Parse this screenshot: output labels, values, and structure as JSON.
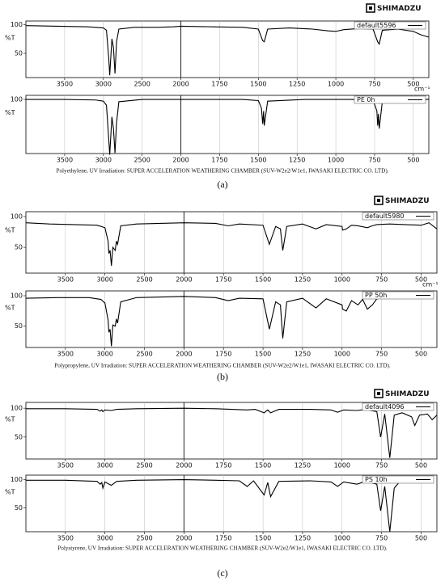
{
  "chart_data": [
    {
      "type": "line",
      "ylabel": "%T",
      "xlabel": "cm⁻¹",
      "xlim": [
        4000,
        400
      ],
      "xbreak": 2000,
      "xbreak_scale": 2,
      "ylim": [
        8,
        106
      ],
      "yticks": [
        100,
        50
      ],
      "grid": true,
      "xticks": [
        3500,
        3000,
        2500,
        2000,
        1750,
        1500,
        1250,
        1000,
        750,
        500
      ],
      "x": [
        4000,
        3600,
        3200,
        3000,
        2960,
        2930,
        2918,
        2890,
        2870,
        2850,
        2830,
        2800,
        2600,
        2300,
        2100,
        2000,
        1800,
        1600,
        1500,
        1472,
        1462,
        1440,
        1300,
        1150,
        1050,
        1000,
        950,
        850,
        760,
        730,
        720,
        700,
        600,
        500,
        450,
        400
      ],
      "series": [
        {
          "name": "default5596",
          "color": "#000000",
          "values": [
            98,
            97,
            96,
            94,
            90,
            40,
            12,
            75,
            60,
            15,
            70,
            92,
            95,
            95,
            96,
            97,
            96,
            95,
            92,
            72,
            70,
            92,
            94,
            92,
            89,
            88,
            91,
            93,
            92,
            70,
            66,
            90,
            92,
            88,
            82,
            78
          ]
        }
      ]
    },
    {
      "type": "line",
      "ylabel": "%T",
      "xlim": [
        4000,
        400
      ],
      "xbreak": 2000,
      "xbreak_scale": 2,
      "ylim": [
        7,
        107
      ],
      "yticks": [
        100
      ],
      "grid": true,
      "xticks": [
        3500,
        3000,
        2500,
        2000,
        1750,
        1500,
        1250,
        1000,
        750,
        500
      ],
      "x": [
        4000,
        3500,
        3100,
        3000,
        2960,
        2930,
        2918,
        2890,
        2870,
        2850,
        2830,
        2800,
        2500,
        2000,
        1600,
        1500,
        1480,
        1472,
        1466,
        1462,
        1440,
        1200,
        900,
        760,
        735,
        730,
        725,
        720,
        700,
        600,
        500,
        400
      ],
      "series": [
        {
          "name": "PE  0h",
          "color": "#000000",
          "values": [
            100,
            100,
            99,
            97,
            90,
            30,
            5,
            70,
            50,
            8,
            60,
            96,
            100,
            100,
            100,
            98,
            85,
            58,
            80,
            55,
            97,
            100,
            100,
            99,
            80,
            55,
            75,
            50,
            96,
            100,
            100,
            100
          ]
        }
      ]
    },
    {
      "type": "line",
      "ylabel": "%T",
      "xlabel": "cm⁻¹",
      "xlim": [
        4000,
        400
      ],
      "xbreak": 2000,
      "xbreak_scale": 2,
      "ylim": [
        8,
        108
      ],
      "yticks": [
        100,
        50
      ],
      "grid": true,
      "xticks": [
        3500,
        3000,
        2500,
        2000,
        1750,
        1500,
        1250,
        1000,
        750,
        500
      ],
      "x": [
        4000,
        3700,
        3400,
        3100,
        3000,
        2960,
        2950,
        2935,
        2918,
        2900,
        2870,
        2855,
        2840,
        2800,
        2600,
        2300,
        2000,
        1800,
        1720,
        1650,
        1500,
        1460,
        1420,
        1390,
        1375,
        1350,
        1250,
        1165,
        1100,
        1000,
        997,
        973,
        940,
        900,
        840,
        810,
        780,
        700,
        600,
        500,
        450,
        400
      ],
      "series": [
        {
          "name": "default5980",
          "color": "#000000",
          "values": [
            90,
            88,
            87,
            86,
            82,
            60,
            40,
            45,
            20,
            50,
            45,
            60,
            55,
            85,
            88,
            89,
            90,
            89,
            85,
            88,
            86,
            55,
            84,
            80,
            45,
            84,
            88,
            80,
            87,
            84,
            78,
            80,
            86,
            85,
            82,
            85,
            87,
            88,
            87,
            86,
            90,
            80
          ]
        }
      ]
    },
    {
      "type": "line",
      "ylabel": "%T",
      "xlim": [
        4000,
        400
      ],
      "xbreak": 2000,
      "xbreak_scale": 2,
      "ylim": [
        15,
        108
      ],
      "yticks": [
        100,
        50
      ],
      "grid": true,
      "xticks": [
        3500,
        3000,
        2500,
        2000,
        1750,
        1500,
        1250,
        1000,
        750,
        500
      ],
      "x": [
        4000,
        3600,
        3200,
        3050,
        3000,
        2960,
        2950,
        2935,
        2918,
        2900,
        2870,
        2855,
        2840,
        2800,
        2600,
        2300,
        2000,
        1800,
        1720,
        1650,
        1500,
        1460,
        1420,
        1390,
        1375,
        1350,
        1250,
        1165,
        1100,
        1000,
        997,
        973,
        940,
        899,
        870,
        840,
        808,
        780,
        750
      ],
      "series": [
        {
          "name": "PP  50h",
          "color": "#000000",
          "values": [
            96,
            97,
            97,
            94,
            88,
            60,
            40,
            45,
            17,
            52,
            50,
            62,
            55,
            90,
            97,
            98,
            99,
            97,
            92,
            96,
            95,
            45,
            90,
            85,
            30,
            90,
            96,
            80,
            95,
            85,
            78,
            75,
            92,
            85,
            94,
            78,
            85,
            95,
            96
          ]
        }
      ]
    },
    {
      "type": "line",
      "ylabel": "%T",
      "xlim": [
        4000,
        400
      ],
      "xbreak": 2000,
      "xbreak_scale": 2,
      "ylim": [
        12,
        110
      ],
      "yticks": [
        100,
        50
      ],
      "grid": true,
      "xticks": [
        3500,
        3000,
        2500,
        2000,
        1750,
        1500,
        1250,
        1000,
        750,
        500
      ],
      "x": [
        4000,
        3500,
        3100,
        3060,
        3040,
        3026,
        3000,
        2920,
        2850,
        2600,
        2000,
        1800,
        1600,
        1550,
        1493,
        1470,
        1452,
        1400,
        1200,
        1070,
        1028,
        990,
        906,
        850,
        780,
        756,
        730,
        698,
        670,
        620,
        560,
        540,
        510,
        460,
        430,
        400
      ],
      "series": [
        {
          "name": "default4096",
          "color": "#000000",
          "values": [
            99,
            99,
            98,
            95,
            97,
            94,
            97,
            96,
            98,
            99,
            100,
            99,
            97,
            98,
            92,
            97,
            92,
            98,
            98,
            97,
            93,
            97,
            96,
            98,
            94,
            50,
            90,
            14,
            88,
            92,
            85,
            70,
            88,
            90,
            80,
            88
          ]
        }
      ]
    },
    {
      "type": "line",
      "ylabel": "%T",
      "xlim": [
        4000,
        400
      ],
      "xbreak": 2000,
      "xbreak_scale": 2,
      "ylim": [
        8,
        108
      ],
      "yticks": [
        100,
        50
      ],
      "grid": true,
      "xticks": [
        3500,
        3000,
        2500,
        2000,
        1750,
        1500,
        1250,
        1000,
        750,
        500
      ],
      "x": [
        4000,
        3500,
        3100,
        3060,
        3040,
        3026,
        3000,
        2920,
        2850,
        2600,
        2000,
        1800,
        1650,
        1600,
        1560,
        1493,
        1470,
        1452,
        1400,
        1200,
        1070,
        1028,
        990,
        906,
        850,
        780,
        756,
        730,
        698,
        670,
        640,
        620
      ],
      "series": [
        {
          "name": "PS  10h",
          "color": "#000000",
          "values": [
            99,
            99,
            97,
            92,
            95,
            85,
            96,
            90,
            97,
            99,
            100,
            99,
            98,
            88,
            98,
            73,
            95,
            70,
            97,
            98,
            96,
            88,
            96,
            92,
            97,
            92,
            45,
            88,
            8,
            85,
            95,
            96
          ]
        }
      ]
    }
  ],
  "figures": [
    {
      "logo": "SHIMADZU",
      "caption": "Polyethylene, UV Irradiation: SUPER ACCELERATION WEATHERING CHAMBER (SUV-W2e2/W1e1, IWASAKI ELECTRIC CO. LTD).",
      "label": "(a)"
    },
    {
      "logo": "SHIMADZU",
      "caption": "Polypropylene, UV Irradiation: SUPER ACCELERATION WEATHERING CHAMBER (SUV-W2e2/W1e1, IWASAKI ELECTRIC CO. LTD).",
      "label": "(b)"
    },
    {
      "logo": "SHIMADZU",
      "caption": "Polystyrene, UV Irradiation: SUPER ACCELERATION WEATHERING CHAMBER (SUV-W2e2/W1e1, IWASAKI ELECTRIC CO. LTD).",
      "label": "(c)"
    }
  ]
}
